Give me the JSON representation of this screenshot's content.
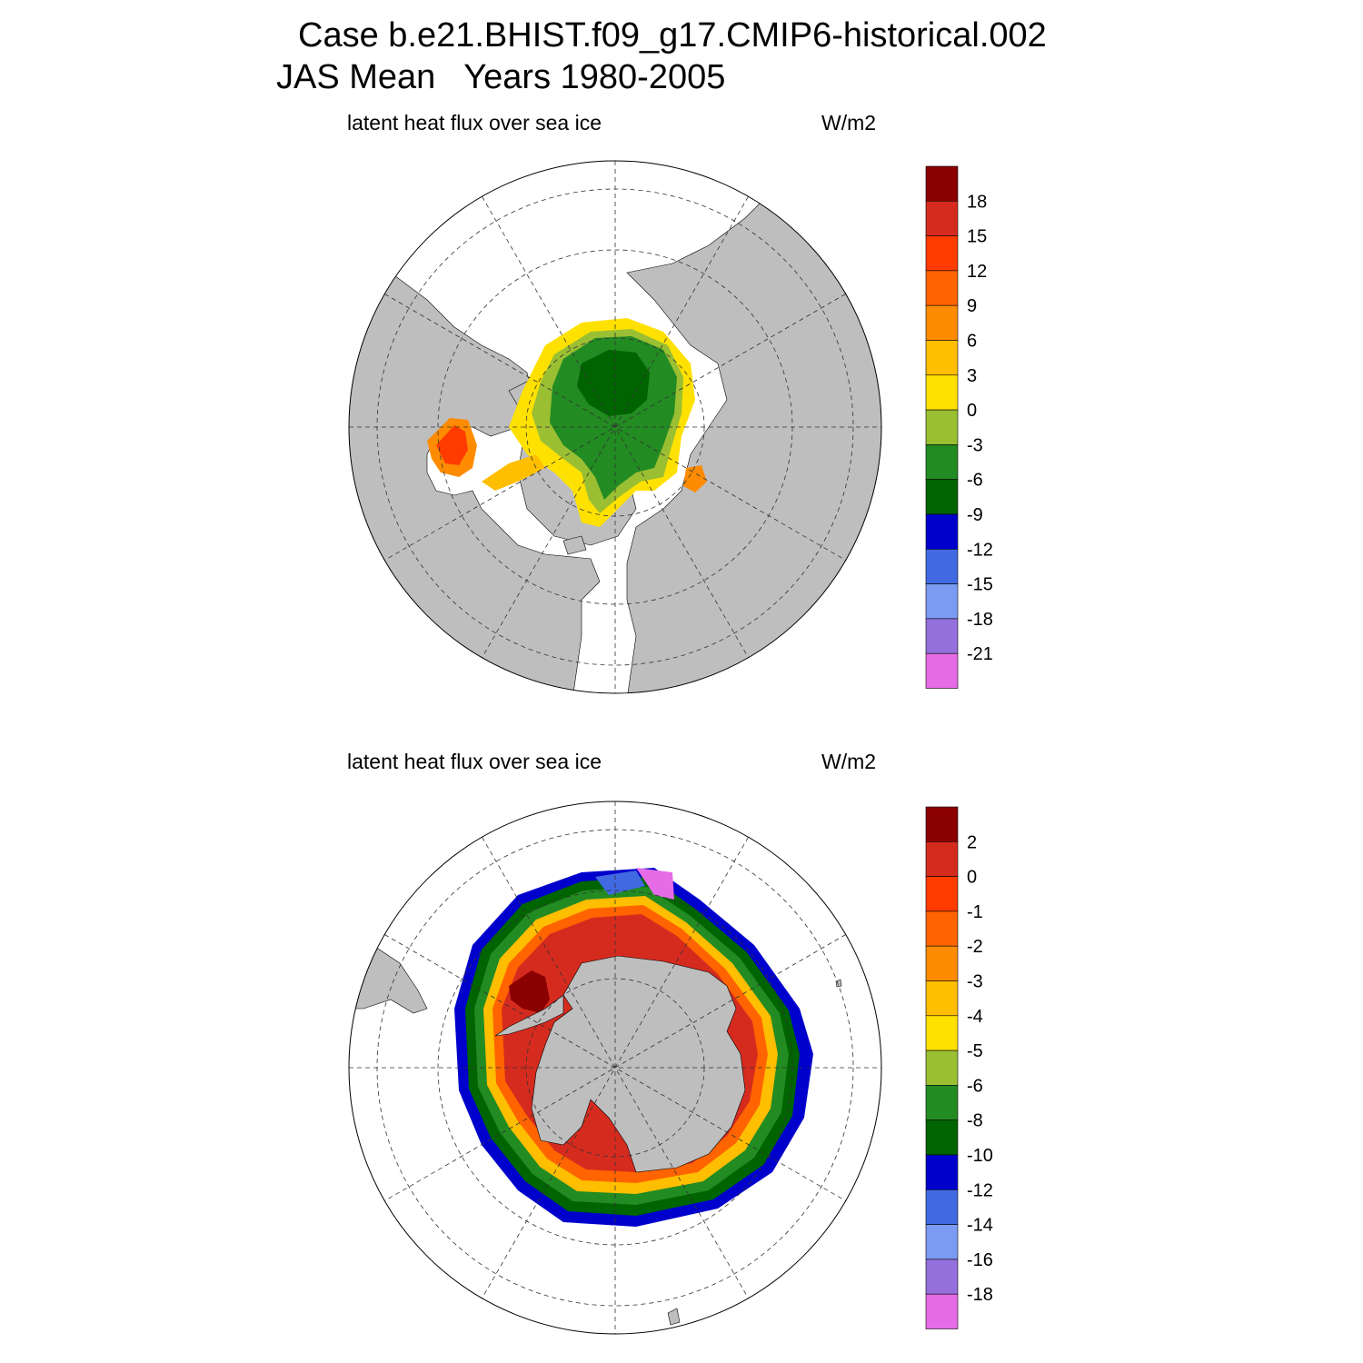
{
  "title_line1": "Case b.e21.BHIST.f09_g17.CMIP6-historical.002",
  "title_line2": "JAS Mean   Years 1980-2005",
  "colors": {
    "land": "#bebebe",
    "ice_free": "#ffffff",
    "scale": [
      "#8b0000",
      "#d52b1e",
      "#ff3b00",
      "#ff6400",
      "#ff8c00",
      "#ffbe00",
      "#ffe100",
      "#9abf32",
      "#228b22",
      "#006400",
      "#0000cd",
      "#4169e1",
      "#7b9bf2",
      "#9370db",
      "#e66be6"
    ]
  },
  "panels": [
    {
      "hemisphere": "north",
      "title": "latent heat flux over sea ice",
      "units": "W/m2",
      "levels": [
        "18",
        "15",
        "12",
        "9",
        "6",
        "3",
        "0",
        "-3",
        "-6",
        "-9",
        "-12",
        "-15",
        "-18",
        "-21"
      ]
    },
    {
      "hemisphere": "south",
      "title": "latent heat flux over sea ice",
      "units": "W/m2",
      "levels": [
        "2",
        "0",
        "-1",
        "-2",
        "-3",
        "-4",
        "-5",
        "-6",
        "-8",
        "-10",
        "-12",
        "-14",
        "-16",
        "-18"
      ]
    }
  ]
}
